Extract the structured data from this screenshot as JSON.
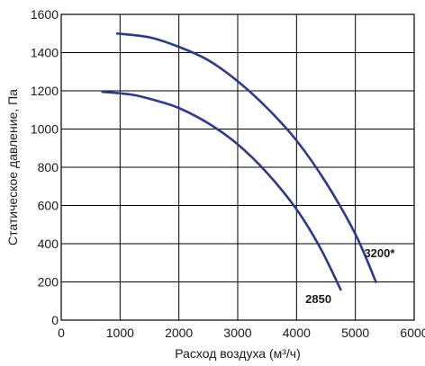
{
  "chart_data": {
    "type": "line",
    "title": "",
    "xlabel": "Расход воздуха (м³/ч)",
    "ylabel": "Статическое давление, Па",
    "xlim": [
      0,
      6000
    ],
    "ylim": [
      0,
      1600
    ],
    "xticks": [
      0,
      1000,
      2000,
      3000,
      4000,
      5000,
      6000
    ],
    "yticks": [
      0,
      200,
      400,
      600,
      800,
      1000,
      1200,
      1400,
      1600
    ],
    "grid": true,
    "line_color": "#2b3990",
    "series": [
      {
        "name": "3200*",
        "x": [
          950,
          1500,
          2000,
          2500,
          3000,
          3500,
          4000,
          4500,
          5000,
          5350
        ],
        "y": [
          1500,
          1480,
          1430,
          1360,
          1250,
          1110,
          940,
          720,
          450,
          200
        ]
      },
      {
        "name": "2850",
        "x": [
          700,
          1200,
          1600,
          2000,
          2500,
          3000,
          3500,
          4000,
          4400,
          4750
        ],
        "y": [
          1195,
          1180,
          1150,
          1110,
          1030,
          920,
          770,
          580,
          380,
          160
        ]
      }
    ],
    "annotations": [
      {
        "text": "3200*",
        "x": 5150,
        "y": 330
      },
      {
        "text": "2850",
        "x": 4150,
        "y": 90
      }
    ]
  }
}
